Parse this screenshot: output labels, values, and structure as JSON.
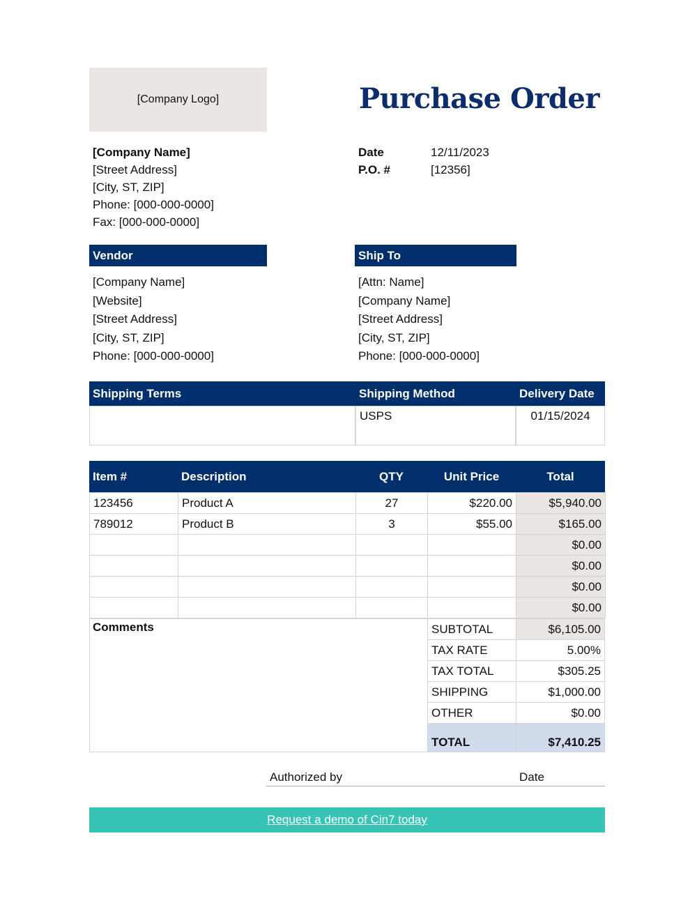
{
  "logo_placeholder": "[Company Logo]",
  "title": "Purchase Order",
  "company": {
    "name": "[Company Name]",
    "street": "[Street Address]",
    "city": "[City, ST, ZIP]",
    "phone": "Phone: [000-000-0000]",
    "fax": "Fax: [000-000-0000]"
  },
  "meta": {
    "date_label": "Date",
    "date_value": "12/11/2023",
    "po_label": "P.O. #",
    "po_value": "[12356]"
  },
  "vendor": {
    "heading": "Vendor",
    "lines": [
      "[Company Name]",
      "[Website]",
      "[Street Address]",
      "[City, ST, ZIP]",
      "Phone: [000-000-0000]"
    ]
  },
  "ship_to": {
    "heading": "Ship To",
    "lines": [
      "[Attn: Name]",
      "[Company Name]",
      "[Street Address]",
      "[City, ST, ZIP]",
      "Phone: [000-000-0000]"
    ]
  },
  "shipping": {
    "headers": [
      "Shipping Terms",
      "Shipping Method",
      "Delivery Date"
    ],
    "values": [
      "",
      "USPS",
      "01/15/2024"
    ]
  },
  "items": {
    "headers": [
      "Item #",
      "Description",
      "QTY",
      "Unit Price",
      "Total"
    ],
    "rows": [
      [
        "123456",
        "Product A",
        "27",
        "$220.00",
        "$5,940.00"
      ],
      [
        "789012",
        "Product B",
        "3",
        "$55.00",
        "$165.00"
      ],
      [
        "",
        "",
        "",
        "",
        "$0.00"
      ],
      [
        "",
        "",
        "",
        "",
        "$0.00"
      ],
      [
        "",
        "",
        "",
        "",
        "$0.00"
      ],
      [
        "",
        "",
        "",
        "",
        "$0.00"
      ]
    ]
  },
  "comments_label": "Comments",
  "summary": [
    [
      "SUBTOTAL",
      "$6,105.00"
    ],
    [
      "TAX RATE",
      "5.00%"
    ],
    [
      "TAX TOTAL",
      "$305.25"
    ],
    [
      "SHIPPING",
      "$1,000.00"
    ],
    [
      "OTHER",
      "$0.00"
    ]
  ],
  "total": {
    "label": "TOTAL",
    "value": "$7,410.25"
  },
  "signature": {
    "authorized_label": "Authorized by",
    "date_label": "Date"
  },
  "cta": {
    "link_text": "Request a demo of Cin7 today"
  },
  "colors": {
    "navy": "#002f6c",
    "beige": "#ebe6e1",
    "total_blue": "#d0dbeb",
    "teal": "#36c5b5"
  }
}
